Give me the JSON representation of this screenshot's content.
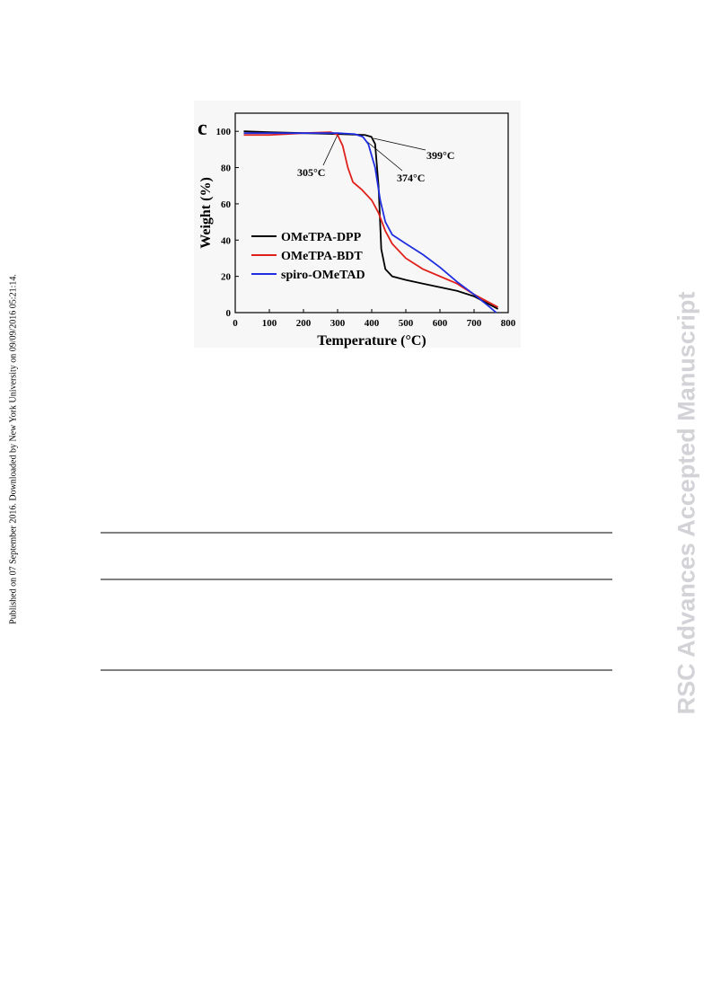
{
  "margin_note": "Published on 07 September 2016. Downloaded by New York University on 09/09/2016 05:21:14.",
  "watermark": "RSC Advances Accepted Manuscript",
  "chart_data": {
    "type": "line",
    "panel_label": "c",
    "x_label": "Temperature (°C)",
    "y_label": "Weight (%)",
    "xlim": [
      0,
      800
    ],
    "ylim": [
      0,
      110
    ],
    "xticks": [
      0,
      100,
      200,
      300,
      400,
      500,
      600,
      700,
      800
    ],
    "yticks": [
      0,
      20,
      40,
      60,
      80,
      100
    ],
    "legend": "center left",
    "series": [
      {
        "name": "OMeTPA-DPP",
        "color": "#000000",
        "x": [
          25,
          100,
          200,
          300,
          380,
          399,
          410,
          420,
          428,
          440,
          460,
          500,
          550,
          600,
          650,
          700,
          740,
          770
        ],
        "values": [
          100,
          99.5,
          99,
          98.5,
          98,
          97,
          93,
          70,
          35,
          24,
          20,
          18,
          16,
          14,
          12,
          9,
          5,
          2
        ]
      },
      {
        "name": "OMeTPA-BDT",
        "color": "#e0201b",
        "x": [
          25,
          100,
          200,
          280,
          300,
          315,
          330,
          345,
          370,
          400,
          420,
          440,
          460,
          500,
          550,
          600,
          650,
          700,
          770
        ],
        "values": [
          98,
          98,
          99,
          99.5,
          98,
          92,
          80,
          72,
          68,
          62,
          55,
          45,
          38,
          30,
          24,
          20,
          16,
          10,
          3
        ]
      },
      {
        "name": "spiro-OMeTAD",
        "color": "#1f2ee0",
        "x": [
          25,
          100,
          200,
          300,
          350,
          374,
          390,
          410,
          425,
          440,
          460,
          500,
          550,
          600,
          650,
          700,
          740,
          765
        ],
        "values": [
          99,
          99,
          99,
          99,
          98.5,
          97,
          93,
          80,
          62,
          50,
          43,
          38,
          32,
          25,
          17,
          10,
          4,
          0
        ]
      }
    ],
    "annotations": [
      "305°C",
      "374°C",
      "399°C"
    ]
  }
}
